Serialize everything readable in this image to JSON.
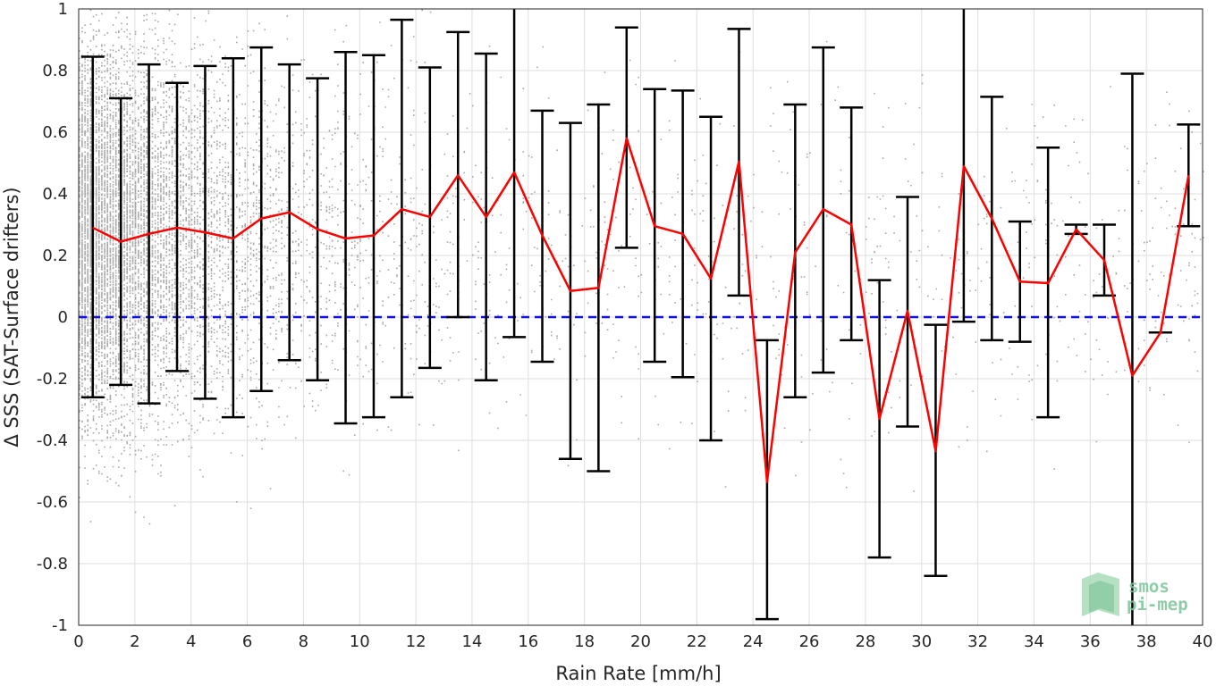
{
  "chart_data": {
    "type": "scatter",
    "xlabel": "Rain Rate [mm/h]",
    "ylabel": "Δ SSS (SAT-Surface drifters)",
    "xlim": [
      0,
      40
    ],
    "ylim": [
      -1,
      1
    ],
    "x_ticks": [
      0,
      2,
      4,
      6,
      8,
      10,
      12,
      14,
      16,
      18,
      20,
      22,
      24,
      26,
      28,
      30,
      32,
      34,
      36,
      38,
      40
    ],
    "y_ticks": [
      -1,
      -0.8,
      -0.6,
      -0.4,
      -0.2,
      0,
      0.2,
      0.4,
      0.6,
      0.8,
      1
    ],
    "y_tick_labels": [
      "-1",
      "-0.8",
      "-0.6",
      "-0.4",
      "-0.2",
      "0",
      "0.2",
      "0.4",
      "0.6",
      "0.8",
      "1"
    ],
    "grid": true,
    "reference_line": {
      "y": 0,
      "color": "#1010e0",
      "style": "dashed"
    },
    "scatter_color": "#8c8c8c",
    "mean_line_color": "#ff0000",
    "errorbar_color": "#000000",
    "series": [
      {
        "type": "line+errorbar",
        "x": [
          0.5,
          1.5,
          2.5,
          3.5,
          4.5,
          5.5,
          6.5,
          7.5,
          8.5,
          9.5,
          10.5,
          11.5,
          12.5,
          13.5,
          14.5,
          15.5,
          16.5,
          17.5,
          18.5,
          19.5,
          20.5,
          21.5,
          22.5,
          23.5,
          24.5,
          25.5,
          26.5,
          27.5,
          28.5,
          29.5,
          30.5,
          31.5,
          32.5,
          33.5,
          34.5,
          35.5,
          36.5,
          37.5,
          38.5,
          39.5
        ],
        "mean": [
          0.29,
          0.245,
          0.27,
          0.29,
          0.275,
          0.255,
          0.32,
          0.34,
          0.285,
          0.255,
          0.265,
          0.35,
          0.325,
          0.46,
          0.325,
          0.47,
          0.265,
          0.085,
          0.095,
          0.58,
          0.295,
          0.27,
          0.125,
          0.505,
          -0.535,
          0.21,
          0.35,
          0.3,
          -0.33,
          0.02,
          -0.435,
          0.49,
          0.32,
          0.115,
          0.11,
          0.285,
          0.185,
          -0.19,
          -0.05,
          0.46
        ],
        "lower": [
          -0.26,
          -0.22,
          -0.28,
          -0.175,
          -0.265,
          -0.325,
          -0.24,
          -0.14,
          -0.205,
          -0.345,
          -0.325,
          -0.26,
          -0.165,
          0.0,
          -0.205,
          -0.065,
          -0.145,
          -0.46,
          -0.5,
          0.225,
          -0.145,
          -0.195,
          -0.4,
          0.07,
          -0.98,
          -0.26,
          -0.18,
          -0.075,
          -0.78,
          -0.355,
          -0.84,
          -0.015,
          -0.075,
          -0.08,
          -0.325,
          0.27,
          0.07,
          -1.0,
          -0.05,
          0.295
        ],
        "upper": [
          0.845,
          0.71,
          0.82,
          0.76,
          0.815,
          0.84,
          0.875,
          0.82,
          0.775,
          0.86,
          0.85,
          0.965,
          0.81,
          0.925,
          0.855,
          1.0,
          0.67,
          0.63,
          0.69,
          0.94,
          0.74,
          0.735,
          0.65,
          0.935,
          -0.075,
          0.69,
          0.875,
          0.68,
          0.12,
          0.39,
          -0.025,
          1.0,
          0.715,
          0.31,
          0.55,
          0.3,
          0.3,
          0.79,
          -0.05,
          0.625
        ]
      }
    ]
  },
  "logo": {
    "line1": "smos",
    "line2": "pi-mep"
  }
}
